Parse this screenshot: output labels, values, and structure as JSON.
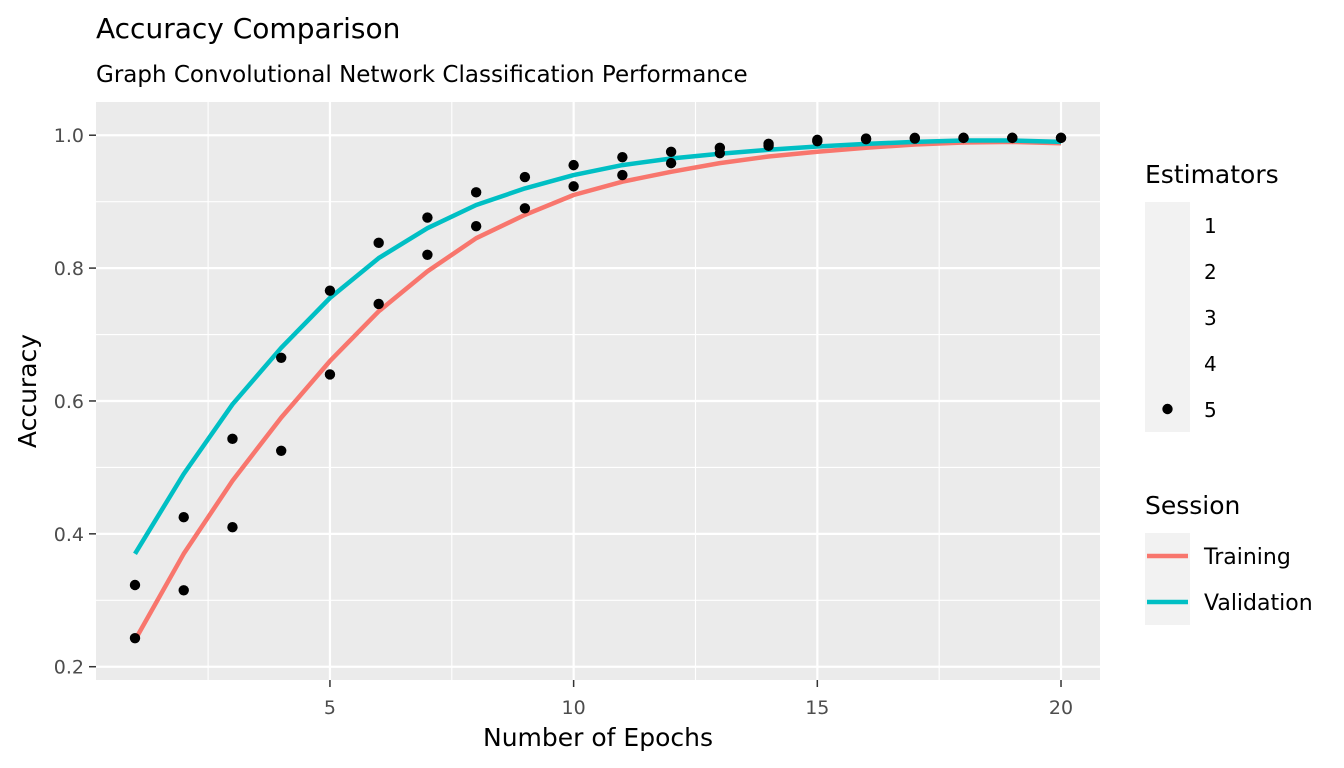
{
  "chart_data": {
    "type": "line",
    "title": "Accuracy Comparison",
    "subtitle": "Graph Convolutional Network Classification Performance",
    "xlabel": "Number of Epochs",
    "ylabel": "Accuracy",
    "xlim": [
      0.2,
      20.8
    ],
    "ylim": [
      0.18,
      1.05
    ],
    "x_ticks": [
      5,
      10,
      15,
      20
    ],
    "y_ticks": [
      0.2,
      0.4,
      0.6,
      0.8,
      1.0
    ],
    "y_tick_labels": [
      "0.2",
      "0.4",
      "0.6",
      "0.8",
      "1.0"
    ],
    "grid": true,
    "x": [
      1,
      2,
      3,
      4,
      5,
      6,
      7,
      8,
      9,
      10,
      11,
      12,
      13,
      14,
      15,
      16,
      17,
      18,
      19,
      20
    ],
    "series": [
      {
        "name": "Training",
        "color": "#F8766D",
        "values": [
          0.24,
          0.37,
          0.48,
          0.575,
          0.66,
          0.735,
          0.795,
          0.845,
          0.88,
          0.91,
          0.93,
          0.945,
          0.958,
          0.968,
          0.975,
          0.981,
          0.986,
          0.989,
          0.99,
          0.988
        ]
      },
      {
        "name": "Validation",
        "color": "#00BFC4",
        "values": [
          0.37,
          0.49,
          0.595,
          0.68,
          0.755,
          0.815,
          0.86,
          0.895,
          0.92,
          0.94,
          0.955,
          0.965,
          0.972,
          0.978,
          0.983,
          0.987,
          0.99,
          0.992,
          0.992,
          0.99
        ]
      }
    ],
    "points": {
      "estimator": "5",
      "color": "#000000",
      "data": [
        [
          1,
          0.243
        ],
        [
          1,
          0.323
        ],
        [
          2,
          0.315
        ],
        [
          2,
          0.425
        ],
        [
          3,
          0.41
        ],
        [
          3,
          0.543
        ],
        [
          4,
          0.525
        ],
        [
          4,
          0.665
        ],
        [
          5,
          0.64
        ],
        [
          5,
          0.766
        ],
        [
          6,
          0.746
        ],
        [
          6,
          0.838
        ],
        [
          7,
          0.82
        ],
        [
          7,
          0.876
        ],
        [
          8,
          0.863
        ],
        [
          8,
          0.914
        ],
        [
          9,
          0.89
        ],
        [
          9,
          0.937
        ],
        [
          10,
          0.923
        ],
        [
          10,
          0.955
        ],
        [
          11,
          0.94
        ],
        [
          11,
          0.967
        ],
        [
          12,
          0.958
        ],
        [
          12,
          0.975
        ],
        [
          13,
          0.973
        ],
        [
          13,
          0.981
        ],
        [
          14,
          0.984
        ],
        [
          14,
          0.987
        ],
        [
          15,
          0.991
        ],
        [
          15,
          0.993
        ],
        [
          16,
          0.994
        ],
        [
          16,
          0.995
        ],
        [
          17,
          0.995
        ],
        [
          17,
          0.996
        ],
        [
          18,
          0.996
        ],
        [
          18,
          0.996
        ],
        [
          19,
          0.996
        ],
        [
          19,
          0.996
        ],
        [
          20,
          0.996
        ],
        [
          20,
          0.996
        ]
      ]
    },
    "legends": [
      {
        "title": "Estimators",
        "type": "points",
        "entries": [
          "1",
          "2",
          "3",
          "4",
          "5"
        ],
        "filled_entry": "5"
      },
      {
        "title": "Session",
        "type": "lines",
        "entries": [
          {
            "label": "Training",
            "color": "#F8766D"
          },
          {
            "label": "Validation",
            "color": "#00BFC4"
          }
        ]
      }
    ],
    "legend_position": "right",
    "colors": {
      "panel_background": "#EBEBEB",
      "grid_line": "#FFFFFF",
      "legend_key_background": "#F2F2F2",
      "axis_text": "#4D4D4D",
      "text": "#000000"
    }
  }
}
